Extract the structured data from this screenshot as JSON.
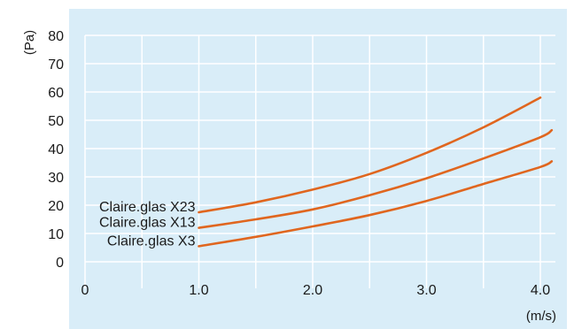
{
  "colors": {
    "background": "#d9edf8",
    "grid": "#ffffff",
    "line": "#e0661f",
    "text": "#1a1a1a"
  },
  "chart_data": {
    "type": "line",
    "title": "",
    "xlabel": "(m/s)",
    "ylabel": "(Pa)",
    "xlim": [
      0,
      4.1
    ],
    "ylim": [
      0,
      80
    ],
    "x_ticks": [
      0,
      1.0,
      2.0,
      3.0,
      4.0
    ],
    "x_tick_labels": [
      "0",
      "1.0",
      "2.0",
      "3.0",
      "4.0"
    ],
    "y_ticks": [
      0,
      10,
      20,
      30,
      40,
      50,
      60,
      70,
      80
    ],
    "y_tick_labels": [
      "0",
      "10",
      "20",
      "30",
      "40",
      "50",
      "60",
      "70",
      "80"
    ],
    "grid": true,
    "legend": "inline-left",
    "series": [
      {
        "name": "Claire.glas X23",
        "x": [
          1.0,
          1.5,
          2.0,
          2.5,
          3.0,
          3.5,
          4.0
        ],
        "y": [
          17.5,
          21,
          25.5,
          31,
          38.5,
          47.5,
          58
        ]
      },
      {
        "name": "Claire.glas X13",
        "x": [
          1.0,
          1.5,
          2.0,
          2.5,
          3.0,
          3.5,
          4.0,
          4.1
        ],
        "y": [
          12,
          15,
          18.5,
          23.5,
          29.5,
          36.5,
          44,
          46.5
        ]
      },
      {
        "name": "Claire.glas X3",
        "x": [
          1.0,
          1.5,
          2.0,
          2.5,
          3.0,
          3.5,
          4.0,
          4.1
        ],
        "y": [
          5.5,
          8.8,
          12.5,
          16.5,
          21.5,
          27.5,
          33.5,
          35.5
        ]
      }
    ]
  }
}
